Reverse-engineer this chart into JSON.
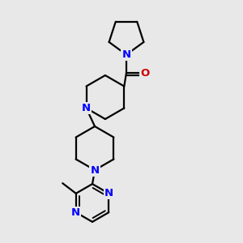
{
  "bg_color": "#e8e8e8",
  "bond_color": "#000000",
  "N_color": "#0000ff",
  "O_color": "#cc0000",
  "line_width": 1.6,
  "font_size": 9.5,
  "figsize": [
    3.0,
    3.0
  ],
  "dpi": 100,
  "xlim": [
    0,
    10
  ],
  "ylim": [
    0,
    10
  ]
}
